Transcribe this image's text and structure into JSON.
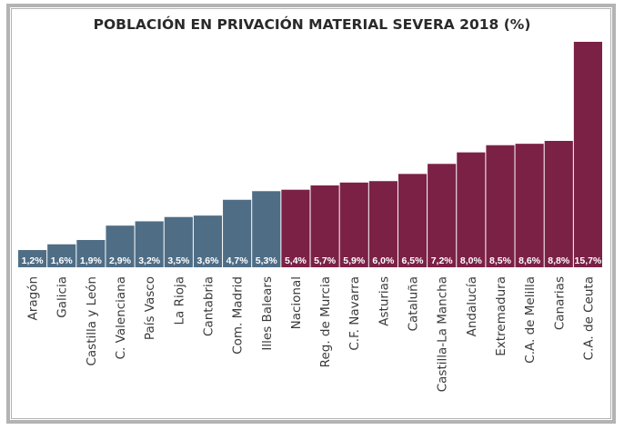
{
  "chart_data": {
    "type": "bar",
    "title": "POBLACIÓN EN PRIVACIÓN MATERIAL SEVERA 2018 (%)",
    "xlabel": "",
    "ylabel": "",
    "ylim": [
      0,
      15.7
    ],
    "grid": false,
    "legend": "none",
    "categories": [
      "Aragón",
      "Galicia",
      "Castilla y León",
      "C. Valenciana",
      "País Vasco",
      "La Rioja",
      "Cantabria",
      "Com. Madrid",
      "Illes Balears",
      "Nacional",
      "Reg. de Murcia",
      "C.F. Navarra",
      "Asturias",
      "Cataluña",
      "Castilla-La Mancha",
      "Andalucía",
      "Extremadura",
      "C.A. de Melilla",
      "Canarias",
      "C.A. de Ceuta"
    ],
    "values": [
      1.2,
      1.6,
      1.9,
      2.9,
      3.2,
      3.5,
      3.6,
      4.7,
      5.3,
      5.4,
      5.7,
      5.9,
      6.0,
      6.5,
      7.2,
      8.0,
      8.5,
      8.6,
      8.8,
      15.7
    ],
    "value_labels": [
      "1,2%",
      "1,6%",
      "1,9%",
      "2,9%",
      "3,2%",
      "3,5%",
      "3,6%",
      "4,7%",
      "5,3%",
      "5,4%",
      "5,7%",
      "5,9%",
      "6,0%",
      "6,5%",
      "7,2%",
      "8,0%",
      "8,5%",
      "8,6%",
      "8,8%",
      "15,7%"
    ],
    "groups": [
      "below",
      "below",
      "below",
      "below",
      "below",
      "below",
      "below",
      "below",
      "below",
      "above",
      "above",
      "above",
      "above",
      "above",
      "above",
      "above",
      "above",
      "above",
      "above",
      "above"
    ],
    "colors": {
      "below": "#4f6e86",
      "above": "#7b2146"
    }
  }
}
